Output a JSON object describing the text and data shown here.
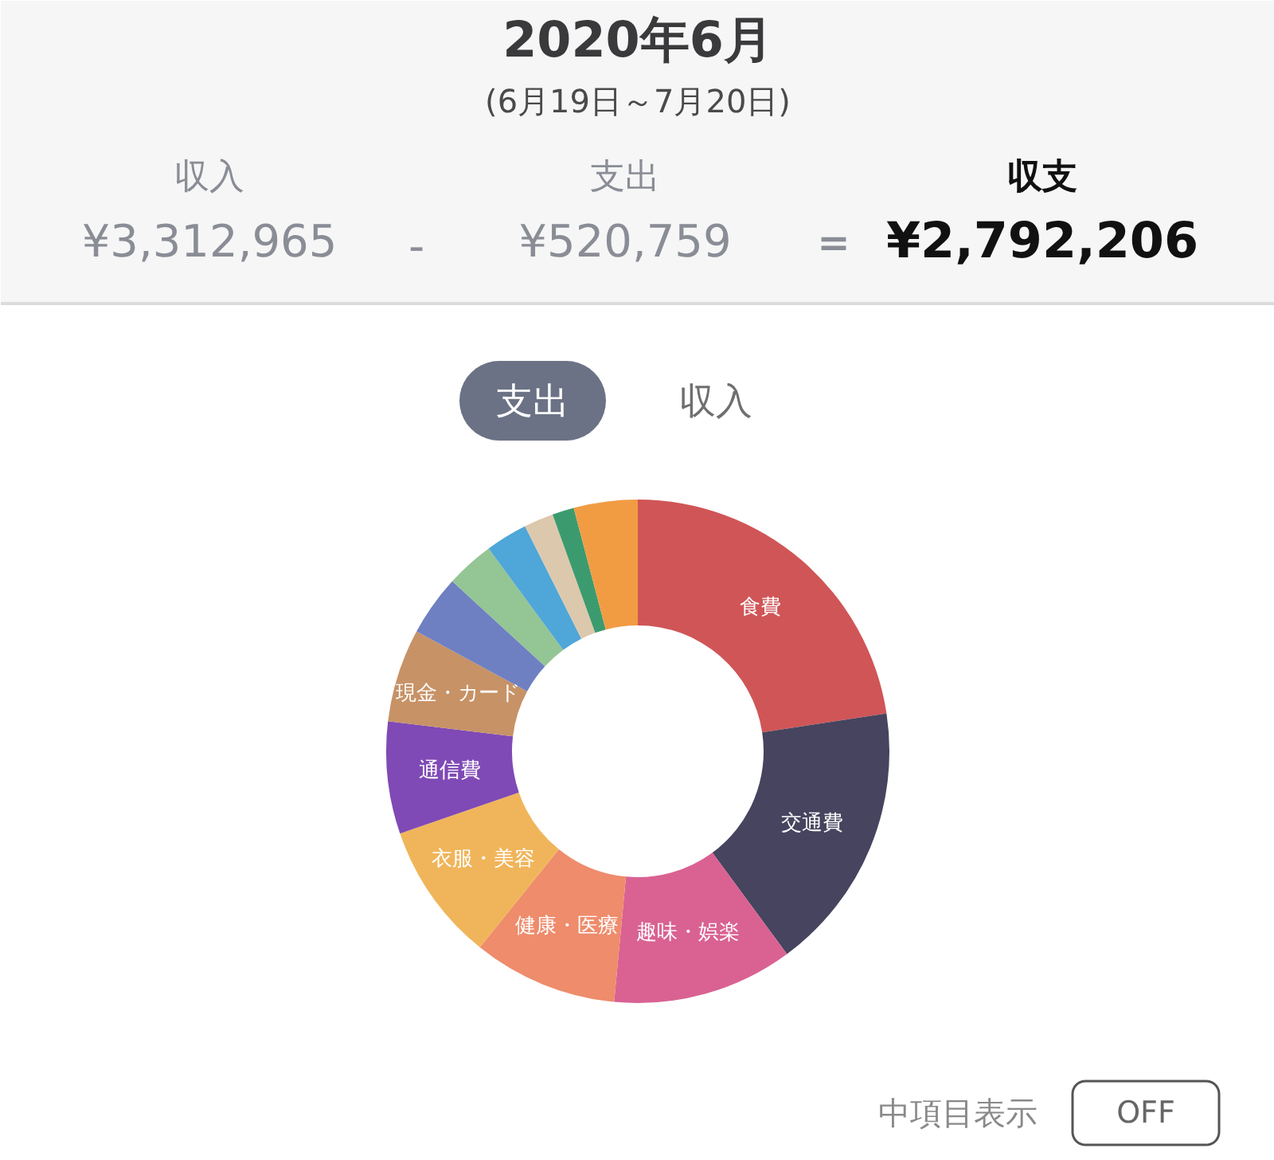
{
  "chart_data": {
    "type": "donut",
    "title": "2020年6月",
    "subtitle": "(6月19日～7月20日)",
    "categories": [
      "食費",
      "交通費",
      "趣味・娯楽",
      "健康・医療",
      "衣服・美容",
      "通信費",
      "現金・カード",
      null,
      null,
      null,
      null,
      null,
      null
    ],
    "values": [
      22.6,
      17.3,
      11.6,
      9.3,
      8.9,
      7.2,
      6.0,
      3.9,
      3.1,
      2.7,
      1.9,
      1.4,
      4.1
    ],
    "colors": [
      "#d05557",
      "#46445e",
      "#d96292",
      "#ee8c6c",
      "#f0b55a",
      "#7f4ab5",
      "#c79266",
      "#6e80c2",
      "#94c594",
      "#4fa6d8",
      "#dcc8ac",
      "#3c9b6e",
      "#f19c43"
    ],
    "annotations": [
      "収入",
      "¥3,312,965",
      "-",
      "支出",
      "¥520,759",
      "＝",
      "収支",
      "¥2,792,206",
      "支出",
      "収入",
      "中項目表示",
      "OFF"
    ]
  }
}
